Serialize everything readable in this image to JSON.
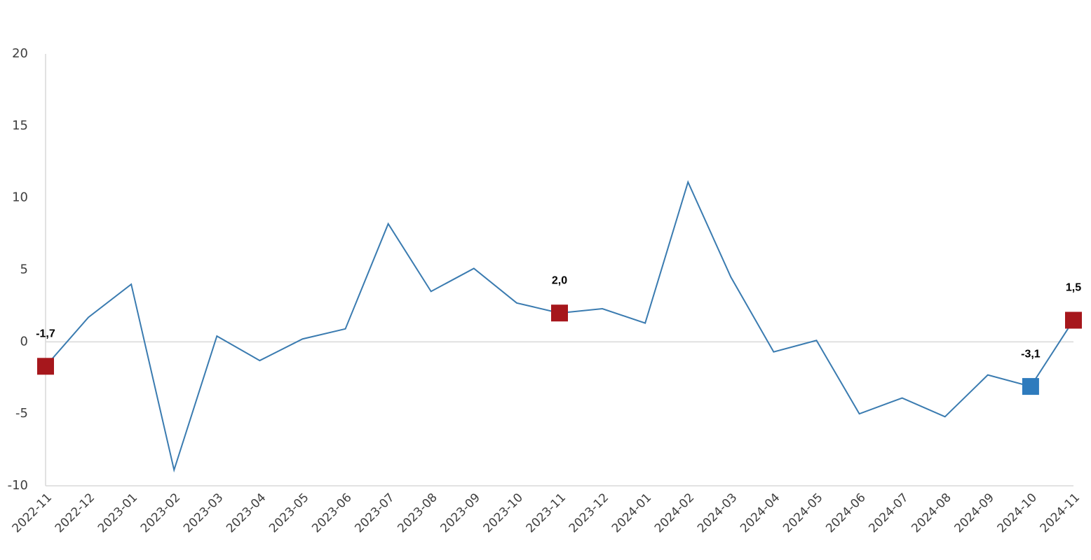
{
  "chart_data": {
    "type": "line",
    "categories": [
      "2022-11",
      "2022-12",
      "2023-01",
      "2023-02",
      "2023-03",
      "2023-04",
      "2023-05",
      "2023-06",
      "2023-07",
      "2023-08",
      "2023-09",
      "2023-10",
      "2023-11",
      "2023-12",
      "2024-01",
      "2024-02",
      "2024-03",
      "2024-04",
      "2024-05",
      "2024-06",
      "2024-07",
      "2024-08",
      "2024-09",
      "2024-10",
      "2024-11"
    ],
    "series": [
      {
        "color": "#3a7bb0",
        "values": [
          -1.7,
          1.7,
          4.0,
          -8.9,
          0.4,
          -1.3,
          0.2,
          0.9,
          8.2,
          3.5,
          5.1,
          2.7,
          2.0,
          2.3,
          1.3,
          11.1,
          4.5,
          -0.7,
          0.1,
          -5.0,
          -3.9,
          -5.2,
          -2.3,
          -3.1,
          1.5
        ],
        "value_labels": [
          "-1,7",
          null,
          null,
          null,
          null,
          null,
          null,
          null,
          null,
          null,
          null,
          null,
          "2,0",
          null,
          null,
          null,
          null,
          null,
          null,
          null,
          null,
          null,
          null,
          "-3,1",
          "1,5"
        ],
        "marker_colors": [
          "#a6171c",
          null,
          null,
          null,
          null,
          null,
          null,
          null,
          null,
          null,
          null,
          null,
          "#a6171c",
          null,
          null,
          null,
          null,
          null,
          null,
          null,
          null,
          null,
          null,
          "#2e7bbd",
          "#a6171c"
        ]
      }
    ],
    "ylim": [
      -10,
      20
    ],
    "yticks": [
      -10,
      -5,
      0,
      5,
      10,
      15,
      20
    ]
  }
}
